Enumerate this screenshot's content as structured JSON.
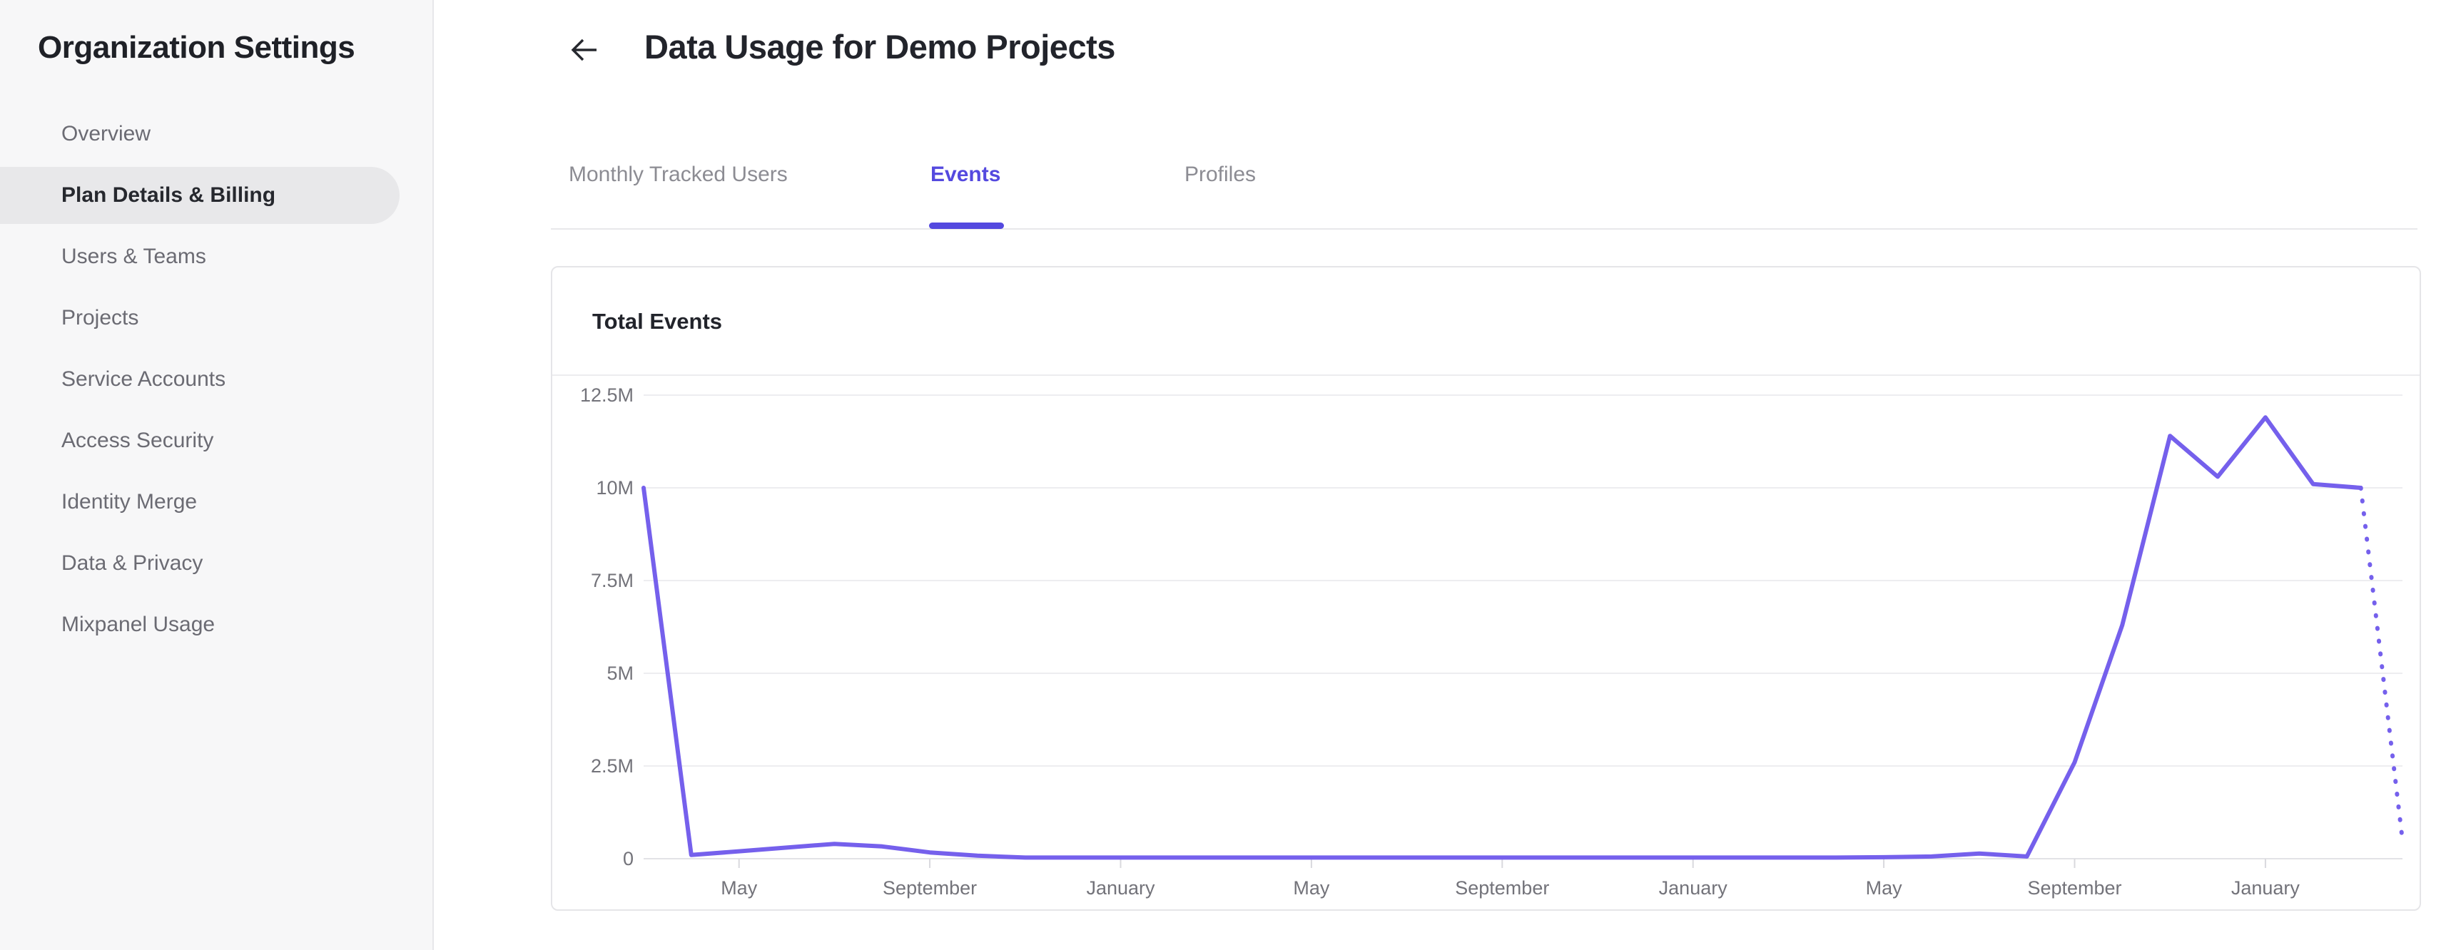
{
  "sidebar": {
    "title": "Organization Settings",
    "items": [
      {
        "label": "Overview",
        "active": false
      },
      {
        "label": "Plan Details & Billing",
        "active": true
      },
      {
        "label": "Users & Teams",
        "active": false
      },
      {
        "label": "Projects",
        "active": false
      },
      {
        "label": "Service Accounts",
        "active": false
      },
      {
        "label": "Access Security",
        "active": false
      },
      {
        "label": "Identity Merge",
        "active": false
      },
      {
        "label": "Data & Privacy",
        "active": false
      },
      {
        "label": "Mixpanel Usage",
        "active": false
      }
    ]
  },
  "header": {
    "title": "Data Usage for Demo Projects"
  },
  "tabs": [
    {
      "label": "Monthly Tracked Users",
      "active": false
    },
    {
      "label": "Events",
      "active": true
    },
    {
      "label": "Profiles",
      "active": false
    }
  ],
  "card": {
    "title": "Total Events"
  },
  "colors": {
    "accent_purple": "#5449DF",
    "line_purple": "#7560EC",
    "sidebar_bg": "#F7F7F8",
    "active_item_bg": "#E8E8EA",
    "grid_line": "#EDEDF0",
    "axis_line": "#E2E2E6",
    "axis_text": "#73737A",
    "text_dark": "#22242B",
    "text_gray": "#6B6B73"
  },
  "chart_data": {
    "type": "line",
    "title": "Total Events",
    "series_name": "Total Events",
    "interval": "monthly",
    "start_month": "March",
    "unit": "events (millions)",
    "values_millions": [
      10,
      0.1,
      0.2,
      0.3,
      0.4,
      0.33,
      0.17,
      0.08,
      0.03,
      0.03,
      0.03,
      0.03,
      0.03,
      0.03,
      0.03,
      0.03,
      0.03,
      0.03,
      0.03,
      0.03,
      0.03,
      0.03,
      0.03,
      0.03,
      0.03,
      0.03,
      0.04,
      0.06,
      0.14,
      0.06,
      2.6,
      6.3,
      11.4,
      10.3,
      11.9,
      10.1,
      10.0
    ],
    "projected_value_millions": 0.5,
    "projected_style": "dotted",
    "y_ticks": [
      "0",
      "2.5M",
      "5M",
      "7.5M",
      "10M",
      "12.5M"
    ],
    "y_max_millions": 12.5,
    "x_tick_labels": [
      "May",
      "September",
      "January",
      "May",
      "September",
      "January",
      "May",
      "September",
      "January"
    ],
    "x_tick_month_indices": [
      2,
      6,
      10,
      14,
      18,
      22,
      26,
      30,
      34
    ],
    "grid": true,
    "legend_position": "none"
  }
}
